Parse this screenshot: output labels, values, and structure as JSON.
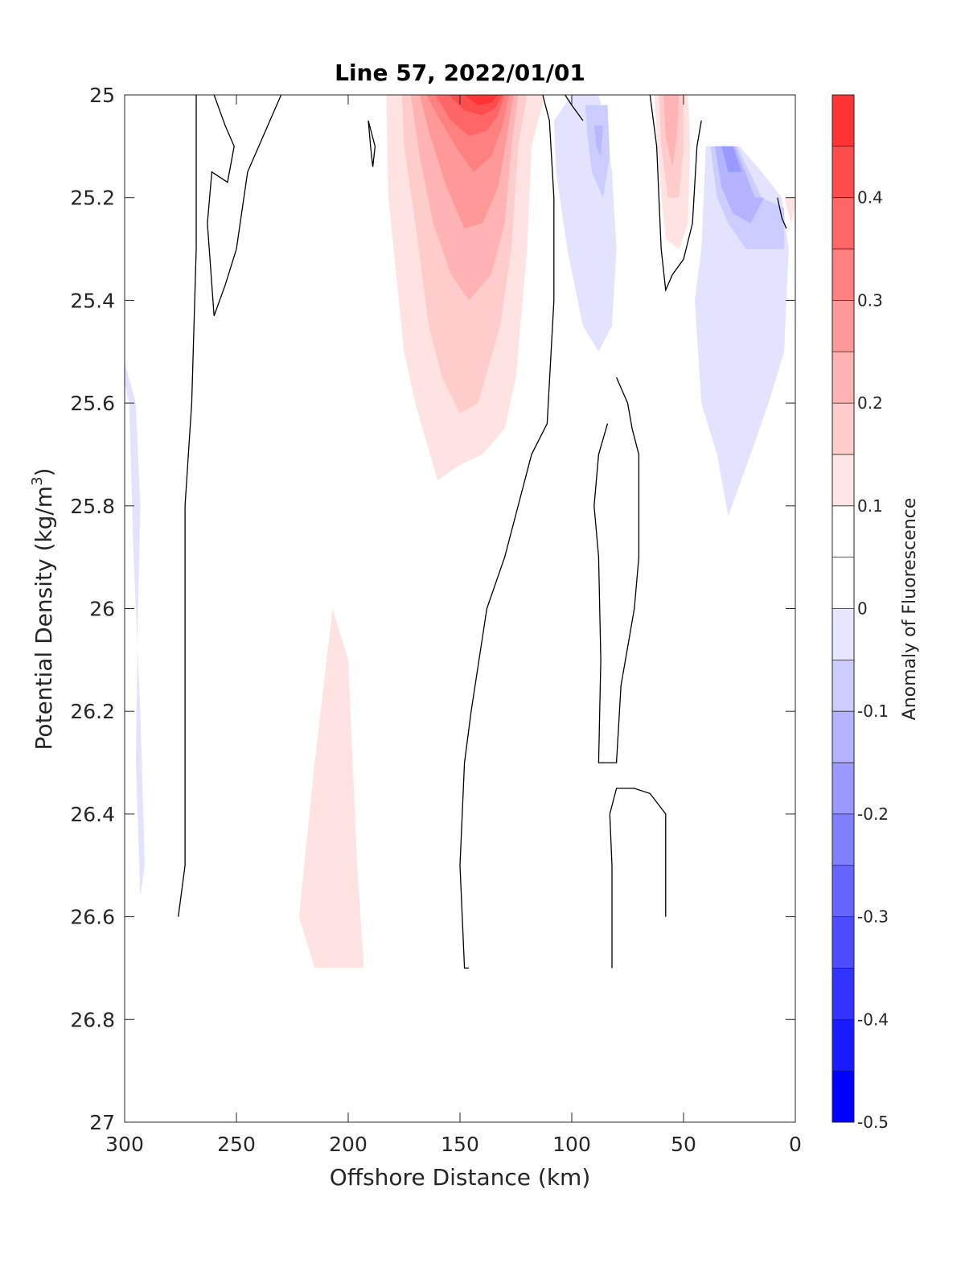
{
  "chart_data": {
    "type": "heatmap",
    "title": "Line 57, 2022/01/01",
    "xlabel": "Offshore Distance (km)",
    "ylabel_main": "Potential Density (kg/m",
    "ylabel_sup": "3",
    "ylabel_close": ")",
    "xlim": [
      300,
      0
    ],
    "ylim": [
      27,
      25
    ],
    "x_reversed": true,
    "y_reversed": true,
    "xticks": [
      300,
      250,
      200,
      150,
      100,
      50,
      0
    ],
    "yticks": [
      25,
      25.2,
      25.4,
      25.6,
      25.8,
      26,
      26.2,
      26.4,
      26.6,
      26.8,
      27
    ],
    "xtick_labels": [
      "300",
      "250",
      "200",
      "150",
      "100",
      "50",
      "0"
    ],
    "ytick_labels": [
      "25",
      "25.2",
      "25.4",
      "25.6",
      "25.8",
      "26",
      "26.2",
      "26.4",
      "26.6",
      "26.8",
      "27"
    ],
    "colorbar": {
      "label": "Anomaly of Fluorescence",
      "range": [
        -0.5,
        0.5
      ],
      "levels": [
        -0.5,
        -0.45,
        -0.4,
        -0.35,
        -0.3,
        -0.25,
        -0.2,
        -0.15,
        -0.1,
        -0.05,
        0,
        0.05,
        0.1,
        0.15,
        0.2,
        0.25,
        0.3,
        0.35,
        0.4,
        0.45,
        0.5
      ],
      "tick_values": [
        -0.5,
        -0.4,
        -0.3,
        -0.2,
        -0.1,
        0,
        0.1,
        0.2,
        0.3,
        0.4
      ],
      "tick_labels": [
        "-0.5",
        "-0.4",
        "-0.3",
        "-0.2",
        "-0.1",
        "0",
        "0.1",
        "0.2",
        "0.3",
        "0.4"
      ],
      "colors": [
        "#0000ff",
        "#1a1aff",
        "#3333ff",
        "#4d4dff",
        "#6666ff",
        "#8080ff",
        "#9999ff",
        "#b3b3ff",
        "#ccccff",
        "#e6e6ff",
        "#ffffff",
        "#ffffff",
        "#ffe6e6",
        "#ffcccc",
        "#ffb3b3",
        "#ff9999",
        "#ff8080",
        "#ff6666",
        "#ff4d4d",
        "#ff3333",
        "#ff1a1a"
      ]
    },
    "filled_regions": [
      {
        "level": 0.05,
        "color": "#ffe3e3",
        "points": [
          [
            183,
            25
          ],
          [
            112,
            25
          ],
          [
            118,
            25.1
          ],
          [
            120,
            25.3
          ],
          [
            125,
            25.55
          ],
          [
            130,
            25.65
          ],
          [
            140,
            25.7
          ],
          [
            150,
            25.72
          ],
          [
            160,
            25.75
          ],
          [
            170,
            25.6
          ],
          [
            175,
            25.5
          ],
          [
            182,
            25.2
          ]
        ]
      },
      {
        "level": 0.1,
        "color": "#ffcccc",
        "points": [
          [
            176,
            25
          ],
          [
            120,
            25
          ],
          [
            124,
            25.1
          ],
          [
            127,
            25.3
          ],
          [
            132,
            25.45
          ],
          [
            142,
            25.6
          ],
          [
            150,
            25.62
          ],
          [
            158,
            25.55
          ],
          [
            164,
            25.45
          ],
          [
            170,
            25.25
          ],
          [
            175,
            25.1
          ]
        ]
      },
      {
        "level": 0.15,
        "color": "#ffb3b3",
        "points": [
          [
            172,
            25
          ],
          [
            124,
            25
          ],
          [
            127,
            25.1
          ],
          [
            130,
            25.25
          ],
          [
            136,
            25.35
          ],
          [
            146,
            25.4
          ],
          [
            154,
            25.35
          ],
          [
            162,
            25.25
          ],
          [
            168,
            25.12
          ]
        ]
      },
      {
        "level": 0.2,
        "color": "#ff9999",
        "points": [
          [
            168,
            25
          ],
          [
            126,
            25
          ],
          [
            129,
            25.08
          ],
          [
            133,
            25.18
          ],
          [
            140,
            25.25
          ],
          [
            148,
            25.26
          ],
          [
            156,
            25.18
          ],
          [
            164,
            25.07
          ]
        ]
      },
      {
        "level": 0.25,
        "color": "#ff8080",
        "points": [
          [
            165,
            25
          ],
          [
            128,
            25
          ],
          [
            131,
            25.06
          ],
          [
            136,
            25.12
          ],
          [
            144,
            25.15
          ],
          [
            152,
            25.1
          ],
          [
            160,
            25.04
          ]
        ]
      },
      {
        "level": 0.3,
        "color": "#ff6666",
        "points": [
          [
            161,
            25
          ],
          [
            130,
            25
          ],
          [
            133,
            25.04
          ],
          [
            138,
            25.07
          ],
          [
            146,
            25.08
          ],
          [
            154,
            25.05
          ]
        ]
      },
      {
        "level": 0.35,
        "color": "#ff4d4d",
        "points": [
          [
            155,
            25
          ],
          [
            131,
            25
          ],
          [
            134,
            25.025
          ],
          [
            140,
            25.04
          ],
          [
            148,
            25.03
          ]
        ]
      },
      {
        "level": 0.4,
        "color": "#ff3333",
        "points": [
          [
            148,
            25
          ],
          [
            133,
            25
          ],
          [
            136,
            25.015
          ],
          [
            142,
            25.02
          ]
        ]
      },
      {
        "level": 0.05,
        "color": "#ffe3e3",
        "points": [
          [
            63,
            25
          ],
          [
            48,
            25
          ],
          [
            47,
            25.1
          ],
          [
            48,
            25.25
          ],
          [
            52,
            25.3
          ],
          [
            58,
            25.28
          ],
          [
            61,
            25.15
          ]
        ]
      },
      {
        "level": 0.1,
        "color": "#ffcccc",
        "points": [
          [
            61,
            25
          ],
          [
            50,
            25
          ],
          [
            50,
            25.1
          ],
          [
            52,
            25.2
          ],
          [
            57,
            25.2
          ],
          [
            60,
            25.1
          ]
        ]
      },
      {
        "level": 0.15,
        "color": "#ffb3b3",
        "points": [
          [
            59,
            25
          ],
          [
            52,
            25
          ],
          [
            53,
            25.08
          ],
          [
            55,
            25.14
          ],
          [
            58,
            25.08
          ]
        ]
      },
      {
        "level": 0.05,
        "color": "#ffe3e3",
        "points": [
          [
            222,
            26.6
          ],
          [
            215,
            26.3
          ],
          [
            207,
            26.0
          ],
          [
            200,
            26.1
          ],
          [
            196,
            26.5
          ],
          [
            193,
            26.7
          ],
          [
            215,
            26.7
          ]
        ]
      },
      {
        "level": 0.05,
        "color": "#ffe3e3",
        "points": [
          [
            5,
            25.2
          ],
          [
            0,
            25.2
          ],
          [
            0,
            25.22
          ],
          [
            2,
            25.25
          ]
        ]
      },
      {
        "level": -0.05,
        "color": "#e3e3ff",
        "points": [
          [
            100,
            25
          ],
          [
            88,
            25
          ],
          [
            85,
            25.05
          ],
          [
            82,
            25.15
          ],
          [
            80,
            25.3
          ],
          [
            82,
            25.45
          ],
          [
            88,
            25.5
          ],
          [
            95,
            25.45
          ],
          [
            102,
            25.3
          ],
          [
            107,
            25.15
          ],
          [
            108,
            25.05
          ]
        ]
      },
      {
        "level": -0.1,
        "color": "#ccccff",
        "points": [
          [
            94,
            25.02
          ],
          [
            84,
            25.02
          ],
          [
            83,
            25.12
          ],
          [
            86,
            25.2
          ],
          [
            91,
            25.15
          ],
          [
            93,
            25.08
          ]
        ]
      },
      {
        "level": -0.15,
        "color": "#b8b8ff",
        "points": [
          [
            90,
            25.06
          ],
          [
            86,
            25.06
          ],
          [
            87,
            25.12
          ],
          [
            89,
            25.1
          ]
        ]
      },
      {
        "level": -0.05,
        "color": "#e3e3ff",
        "points": [
          [
            40,
            25.1
          ],
          [
            25,
            25.1
          ],
          [
            15,
            25.15
          ],
          [
            6,
            25.2
          ],
          [
            3,
            25.3
          ],
          [
            5,
            25.5
          ],
          [
            12,
            25.6
          ],
          [
            20,
            25.7
          ],
          [
            30,
            25.82
          ],
          [
            35,
            25.7
          ],
          [
            42,
            25.6
          ],
          [
            45,
            25.4
          ],
          [
            42,
            25.3
          ]
        ]
      },
      {
        "level": -0.1,
        "color": "#ccccff",
        "points": [
          [
            38,
            25.1
          ],
          [
            26,
            25.1
          ],
          [
            15,
            25.2
          ],
          [
            5,
            25.22
          ],
          [
            5,
            25.3
          ],
          [
            12,
            25.3
          ],
          [
            22,
            25.3
          ],
          [
            30,
            25.25
          ],
          [
            35,
            25.2
          ]
        ]
      },
      {
        "level": -0.15,
        "color": "#b3b3ff",
        "points": [
          [
            36,
            25.1
          ],
          [
            27,
            25.1
          ],
          [
            18,
            25.2
          ],
          [
            14,
            25.2
          ],
          [
            20,
            25.25
          ],
          [
            28,
            25.23
          ],
          [
            33,
            25.18
          ]
        ]
      },
      {
        "level": -0.2,
        "color": "#9999ff",
        "points": [
          [
            33,
            25.1
          ],
          [
            28,
            25.1
          ],
          [
            24,
            25.15
          ],
          [
            30,
            25.15
          ]
        ]
      },
      {
        "level": -0.05,
        "color": "#e3e3ff",
        "points": [
          [
            300,
            25.52
          ],
          [
            295,
            25.6
          ],
          [
            293,
            25.8
          ],
          [
            294,
            26
          ],
          [
            295,
            26.3
          ],
          [
            293,
            26.56
          ],
          [
            291,
            26.5
          ],
          [
            293,
            26.2
          ],
          [
            296,
            25.9
          ],
          [
            298,
            25.6
          ],
          [
            300,
            25.56
          ]
        ]
      }
    ],
    "contour_lines": [
      {
        "level": 0,
        "points": [
          [
            268,
            25
          ],
          [
            268,
            25.3
          ],
          [
            270,
            25.6
          ],
          [
            273,
            25.8
          ],
          [
            273,
            26
          ],
          [
            273,
            26.3
          ],
          [
            273,
            26.5
          ],
          [
            276,
            26.6
          ]
        ]
      },
      {
        "level": 0,
        "points": [
          [
            260,
            25
          ],
          [
            255,
            25.06
          ],
          [
            251,
            25.1
          ],
          [
            254,
            25.17
          ],
          [
            261,
            25.15
          ],
          [
            263,
            25.25
          ],
          [
            260,
            25.43
          ],
          [
            255,
            25.37
          ],
          [
            250,
            25.3
          ],
          [
            245,
            25.15
          ],
          [
            240,
            25.1
          ],
          [
            235,
            25.05
          ],
          [
            230,
            25
          ]
        ]
      },
      {
        "level": 0,
        "points": [
          [
            191,
            25.05
          ],
          [
            190,
            25.1
          ],
          [
            189,
            25.14
          ],
          [
            188,
            25.1
          ],
          [
            191,
            25.05
          ]
        ]
      },
      {
        "level": 0,
        "points": [
          [
            113,
            25
          ],
          [
            110,
            25.05
          ],
          [
            108,
            25.2
          ],
          [
            108,
            25.4
          ],
          [
            111,
            25.64
          ],
          [
            118,
            25.7
          ],
          [
            124,
            25.8
          ],
          [
            130,
            25.9
          ],
          [
            138,
            26.0
          ],
          [
            145,
            26.2
          ],
          [
            148,
            26.3
          ],
          [
            150,
            26.5
          ],
          [
            148,
            26.7
          ],
          [
            146,
            26.7
          ]
        ]
      },
      {
        "level": 0,
        "points": [
          [
            95,
            25.05
          ],
          [
            100,
            25.02
          ],
          [
            103,
            25
          ]
        ]
      },
      {
        "level": 0,
        "points": [
          [
            65,
            25
          ],
          [
            62,
            25.1
          ],
          [
            60,
            25.3
          ],
          [
            58,
            25.38
          ],
          [
            55,
            25.35
          ],
          [
            50,
            25.32
          ],
          [
            46,
            25.25
          ],
          [
            44,
            25.1
          ],
          [
            42,
            25.05
          ]
        ]
      },
      {
        "level": 0,
        "points": [
          [
            80,
            25.55
          ],
          [
            75,
            25.6
          ],
          [
            73,
            25.65
          ],
          [
            70,
            25.7
          ],
          [
            70,
            25.9
          ],
          [
            72,
            26.0
          ],
          [
            74,
            26.05
          ],
          [
            78,
            26.15
          ],
          [
            80,
            26.3
          ],
          [
            88,
            26.3
          ],
          [
            87,
            26.1
          ],
          [
            88,
            25.9
          ],
          [
            90,
            25.8
          ],
          [
            88,
            25.7
          ],
          [
            84,
            25.64
          ]
        ]
      },
      {
        "level": 0,
        "points": [
          [
            82,
            26.7
          ],
          [
            82,
            26.5
          ],
          [
            83,
            26.4
          ],
          [
            80,
            26.35
          ],
          [
            72,
            26.35
          ],
          [
            65,
            26.36
          ],
          [
            58,
            26.4
          ],
          [
            58,
            26.6
          ]
        ]
      },
      {
        "level": 0,
        "points": [
          [
            8,
            25.2
          ],
          [
            6,
            25.24
          ],
          [
            4,
            25.26
          ]
        ]
      }
    ]
  }
}
